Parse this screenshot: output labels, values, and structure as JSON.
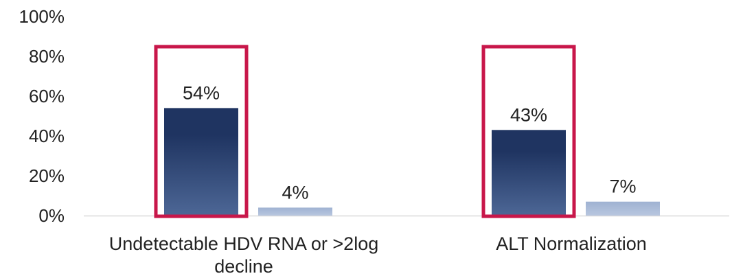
{
  "chart_data": {
    "type": "bar",
    "categories": [
      [
        "Undetectable HDV RNA or >2log",
        "decline"
      ],
      [
        "ALT Normalization"
      ]
    ],
    "series": [
      {
        "values": [
          54,
          43
        ],
        "labels": [
          "54%",
          "43%"
        ],
        "color_top": "#1f3461",
        "color_bottom": "#4d6796"
      },
      {
        "values": [
          4,
          7
        ],
        "labels": [
          "4%",
          "7%"
        ],
        "color_top": "#9fb2d2",
        "color_bottom": "#b8c6df"
      }
    ],
    "ylim": [
      0,
      100
    ],
    "yticks": [
      0,
      20,
      40,
      60,
      80,
      100
    ],
    "ytick_labels": [
      "0%",
      "20%",
      "40%",
      "60%",
      "80%",
      "100%"
    ],
    "highlight_series": 0,
    "highlight_color": "#c8174a",
    "axis_color": "#d9d9d9"
  }
}
